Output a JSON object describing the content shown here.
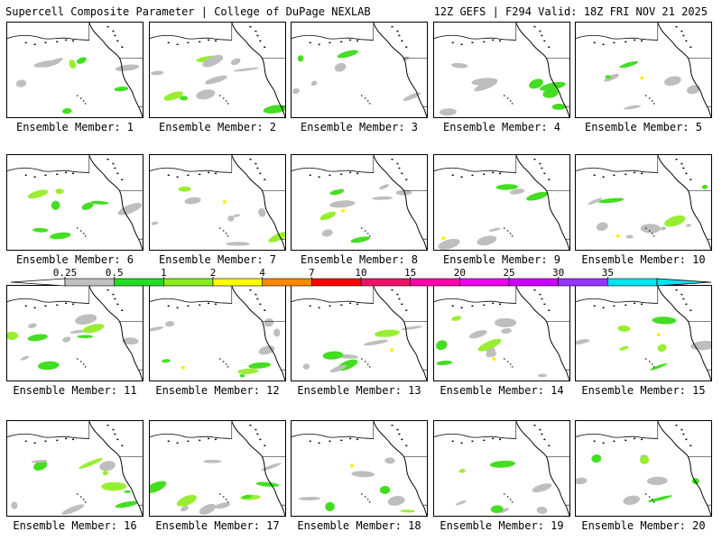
{
  "header": {
    "left": "Supercell Composite Parameter | College of DuPage NEXLAB",
    "right": "12Z GEFS | F294 Valid: 18Z FRI NOV 21 2025"
  },
  "label_prefix": "Ensemble Member: ",
  "members": [
    "1",
    "2",
    "3",
    "4",
    "5",
    "6",
    "7",
    "8",
    "9",
    "10",
    "11",
    "12",
    "13",
    "14",
    "15",
    "16",
    "17",
    "18",
    "19",
    "20"
  ],
  "colorbar": {
    "ticks": [
      "0.25",
      "0.5",
      "1",
      "2",
      "4",
      "7",
      "10",
      "15",
      "20",
      "25",
      "30",
      "35"
    ],
    "colors": [
      "#c0c0c0",
      "#22dd22",
      "#88ee22",
      "#ffff00",
      "#ff8800",
      "#ff0000",
      "#ee1166",
      "#ff00aa",
      "#ee00ee",
      "#cc00ff",
      "#9933ff",
      "#00e5ee"
    ]
  },
  "map_colors": {
    "coast": "#000000",
    "gray": "#bebebe",
    "green": "#44dd22",
    "lime": "#99ee33",
    "yellow": "#ffee00"
  }
}
